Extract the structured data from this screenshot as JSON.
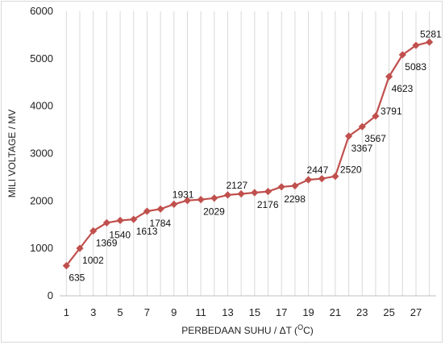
{
  "chart_data": {
    "type": "line",
    "xlabel": "PERBEDAAN SUHU  / ΔT  (",
    "xlabel_unit_sup": "O",
    "xlabel_unit_tail": "C)",
    "ylabel": "MILI VOLTAGE /  MV",
    "ylim": [
      0,
      6000
    ],
    "yticks": [
      0,
      1000,
      2000,
      3000,
      4000,
      5000,
      6000
    ],
    "xlim": [
      0.5,
      28.5
    ],
    "xticks": [
      1,
      3,
      5,
      7,
      9,
      11,
      13,
      15,
      17,
      19,
      21,
      23,
      25,
      27
    ],
    "grid": "vertical",
    "series_color": "#c0504d",
    "series": [
      {
        "x": [
          1,
          2,
          3,
          4,
          5,
          6,
          7,
          8,
          9,
          10,
          11,
          12,
          13,
          14,
          15,
          16,
          17,
          18,
          19,
          20,
          21,
          22,
          23,
          24,
          25,
          26,
          27,
          28
        ],
        "values": [
          635,
          1002,
          1369,
          1540,
          1590,
          1613,
          1784,
          1830,
          1931,
          2010,
          2029,
          2060,
          2127,
          2150,
          2176,
          2200,
          2298,
          2320,
          2447,
          2470,
          2520,
          3367,
          3567,
          3791,
          4623,
          5083,
          5281,
          5350
        ]
      }
    ],
    "data_labels": [
      {
        "x": 1,
        "text": "635"
      },
      {
        "x": 2,
        "text": "1002"
      },
      {
        "x": 3,
        "text": "1369"
      },
      {
        "x": 4,
        "text": "1540"
      },
      {
        "x": 6,
        "text": "1613"
      },
      {
        "x": 7,
        "text": "1784"
      },
      {
        "x": 9,
        "text": "1931"
      },
      {
        "x": 11,
        "text": "2029"
      },
      {
        "x": 13,
        "text": "2127"
      },
      {
        "x": 15,
        "text": "2176"
      },
      {
        "x": 17,
        "text": "2298"
      },
      {
        "x": 19,
        "text": "2447"
      },
      {
        "x": 21,
        "text": "2520"
      },
      {
        "x": 22,
        "text": "3367"
      },
      {
        "x": 23,
        "text": "3567"
      },
      {
        "x": 24,
        "text": "3791"
      },
      {
        "x": 25,
        "text": "4623"
      },
      {
        "x": 26,
        "text": "5083"
      },
      {
        "x": 27,
        "text": "5281"
      }
    ]
  }
}
